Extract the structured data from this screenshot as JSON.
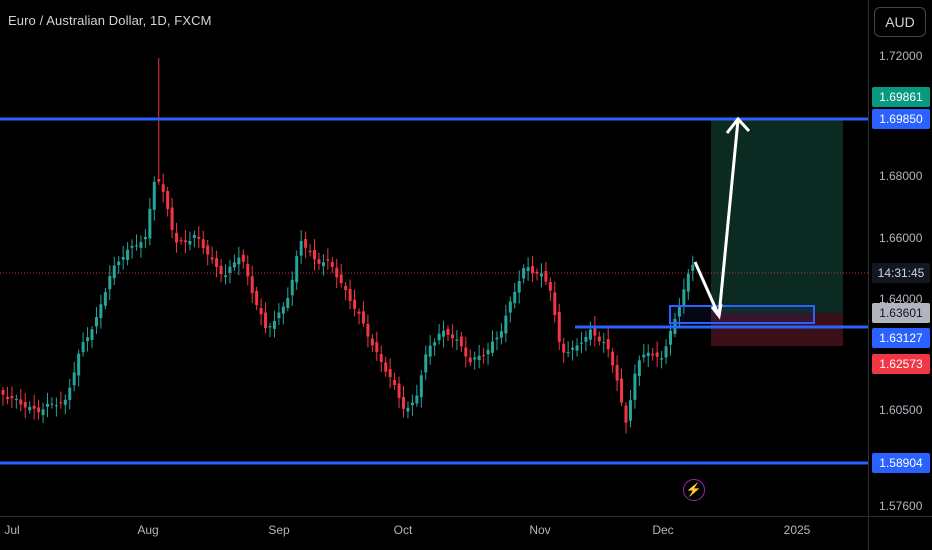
{
  "header": {
    "symbol_title": "Euro / Australian Dollar, 1D, FXCM"
  },
  "currency_button": "AUD",
  "price_axis": {
    "ticks": [
      "1.72000",
      "1.68000",
      "1.66000",
      "1.64000",
      "1.60500",
      "1.57600"
    ],
    "tags": [
      {
        "label": "1.69861",
        "bg": "#089981",
        "fg": "#ffffff"
      },
      {
        "label": "1.69850",
        "bg": "#2962ff",
        "fg": "#ffffff"
      },
      {
        "label": "14:31:45",
        "bg": "#131722",
        "fg": "#d1d4dc"
      },
      {
        "label": "1.63601",
        "bg": "#b2b5be",
        "fg": "#131722"
      },
      {
        "label": "1.63127",
        "bg": "#2962ff",
        "fg": "#ffffff"
      },
      {
        "label": "1.62573",
        "bg": "#f23645",
        "fg": "#ffffff"
      },
      {
        "label": "1.58904",
        "bg": "#2962ff",
        "fg": "#ffffff"
      }
    ]
  },
  "time_axis": [
    "Jul",
    "Aug",
    "Sep",
    "Oct",
    "Nov",
    "Dec",
    "2025"
  ],
  "colors": {
    "up": "#26a69a",
    "down": "#f23645",
    "level": "#2962ff",
    "profit_zone": "#0b2a22",
    "loss_zone": "#3a0f18"
  },
  "icons": {
    "event": "lightning-icon"
  }
}
